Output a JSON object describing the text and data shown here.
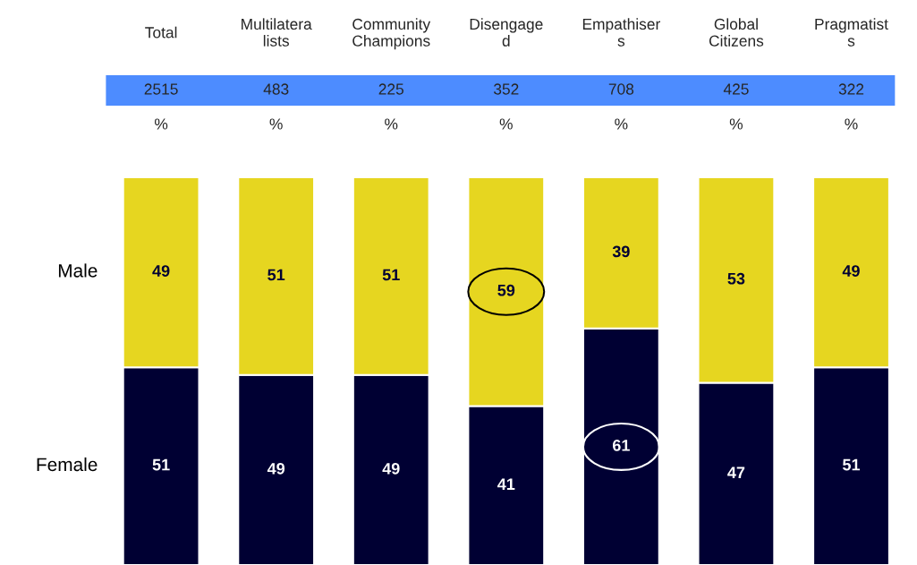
{
  "chart_data": {
    "type": "bar",
    "stacked": true,
    "data_labels": true,
    "legend": false,
    "ylim": [
      0,
      100
    ],
    "categories": [
      "Total",
      "Multilatera\nlists",
      "Community\nChampions",
      "Disengage\nd",
      "Empathiser\ns",
      "Global\nCitizens",
      "Pragmatist\ns"
    ],
    "series": [
      {
        "name": "Female",
        "color": "#000033",
        "values": [
          51,
          49,
          49,
          41,
          61,
          47,
          51
        ]
      },
      {
        "name": "Male",
        "color": "#e6d620",
        "values": [
          49,
          51,
          51,
          59,
          39,
          53,
          49
        ]
      }
    ],
    "annotations": [
      "2515",
      "483",
      "225",
      "352",
      "708",
      "425",
      "322",
      "%",
      "%",
      "%",
      "%",
      "%",
      "%",
      "%"
    ]
  }
}
